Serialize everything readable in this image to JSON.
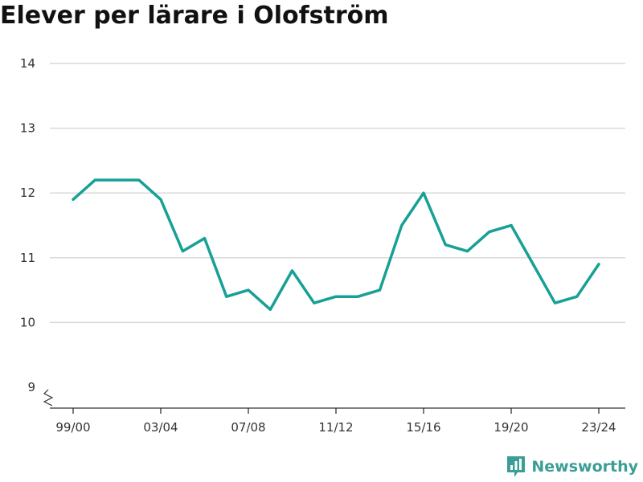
{
  "title": "Elever per lärare i Olofström",
  "brand": {
    "name": "Newsworthy",
    "icon": "bar-chart-logo-icon",
    "color": "#3a9e96"
  },
  "colors": {
    "line": "#17a096",
    "grid": "#d9d9d9",
    "axis": "#333333",
    "text": "#333333"
  },
  "chart_data": {
    "type": "line",
    "title": "Elever per lärare i Olofström",
    "xlabel": "",
    "ylabel": "",
    "ylim": [
      9,
      14
    ],
    "yticks": [
      9,
      10,
      11,
      12,
      13,
      14
    ],
    "y_axis_break": true,
    "grid": true,
    "x": [
      "99/00",
      "00/01",
      "01/02",
      "02/03",
      "03/04",
      "04/05",
      "05/06",
      "06/07",
      "07/08",
      "08/09",
      "09/10",
      "10/11",
      "11/12",
      "12/13",
      "13/14",
      "14/15",
      "15/16",
      "16/17",
      "17/18",
      "18/19",
      "19/20",
      "20/21",
      "21/22",
      "22/23",
      "23/24"
    ],
    "xtick_labels": [
      "99/00",
      "03/04",
      "07/08",
      "11/12",
      "15/16",
      "19/20",
      "23/24"
    ],
    "series": [
      {
        "values": [
          11.9,
          12.2,
          12.2,
          12.2,
          11.9,
          11.1,
          11.3,
          10.4,
          10.5,
          10.2,
          10.8,
          10.3,
          10.4,
          10.4,
          10.5,
          11.5,
          12.0,
          11.2,
          11.1,
          11.4,
          11.5,
          10.9,
          10.3,
          10.4,
          10.9
        ]
      }
    ]
  }
}
